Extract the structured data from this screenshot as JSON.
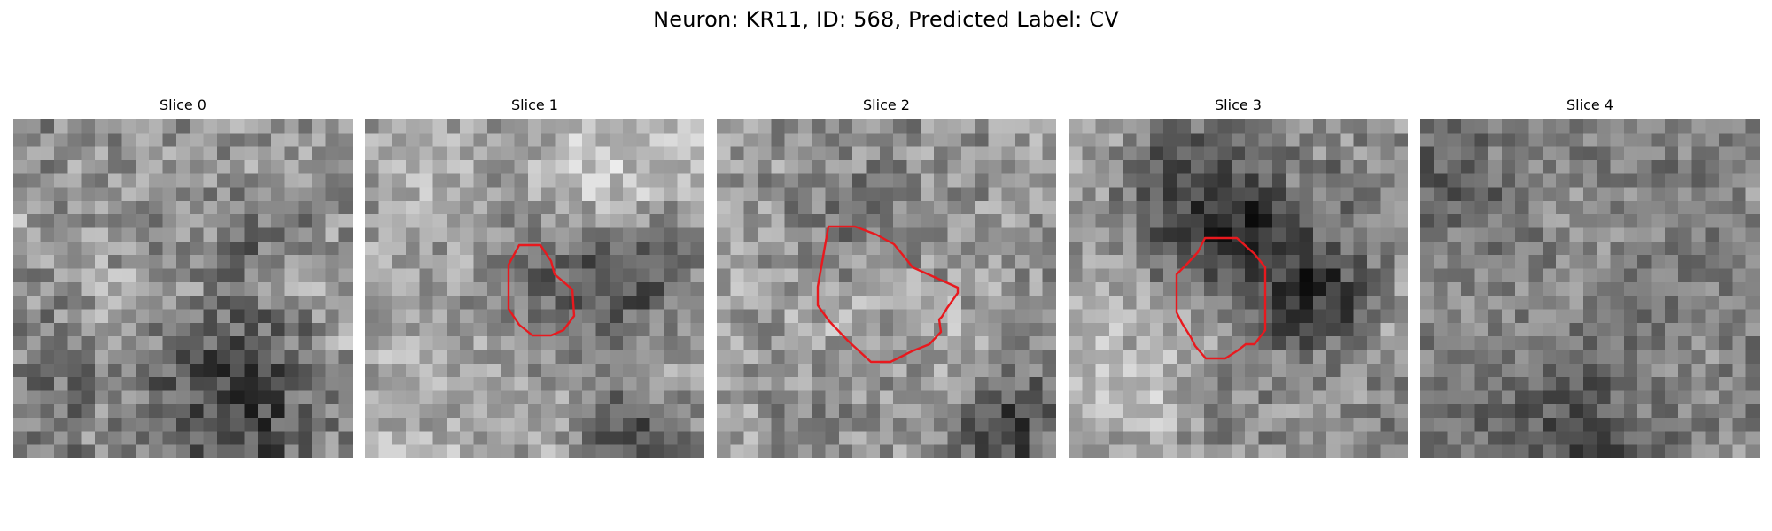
{
  "figure": {
    "title": "Neuron: KR11, ID: 568, Predicted Label: CV",
    "roi_color": "#e8191e"
  },
  "slices": [
    {
      "title": "Slice 0",
      "has_roi": false
    },
    {
      "title": "Slice 1",
      "has_roi": true
    },
    {
      "title": "Slice 2",
      "has_roi": true
    },
    {
      "title": "Slice 3",
      "has_roi": true
    },
    {
      "title": "Slice 4",
      "has_roi": false
    }
  ]
}
